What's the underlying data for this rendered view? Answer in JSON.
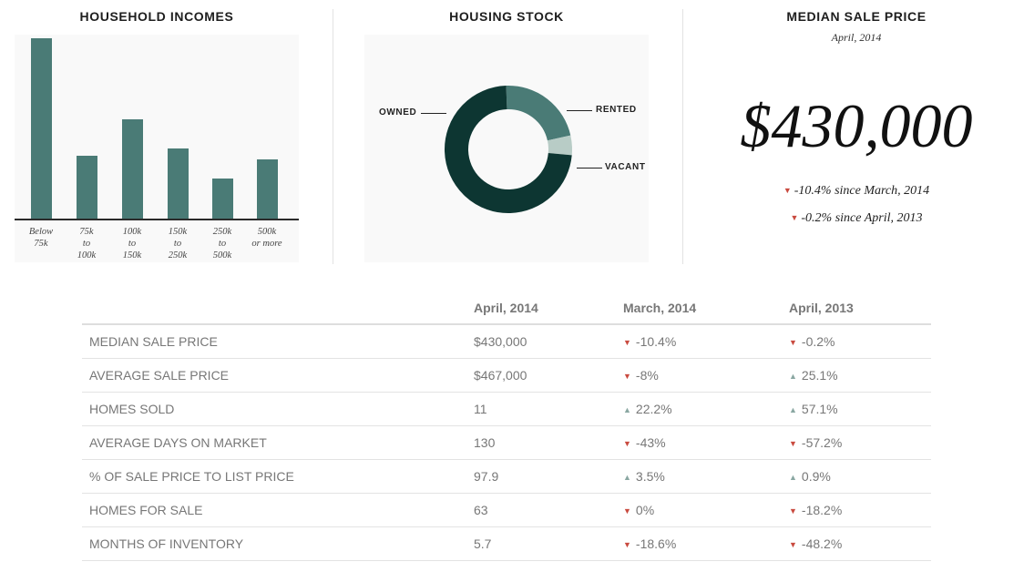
{
  "household_incomes": {
    "title": "HOUSEHOLD INCOMES",
    "chart_data": {
      "type": "bar",
      "categories": [
        "Below\n75k",
        "75k\nto\n100k",
        "100k\nto\n150k",
        "150k\nto\n250k",
        "250k\nto\n500k",
        "500k\nor more"
      ],
      "values": [
        100,
        35,
        55,
        39,
        22,
        33
      ],
      "bar_color": "#4a7b76"
    }
  },
  "housing_stock": {
    "title": "HOUSING STOCK",
    "chart_data": {
      "type": "pie",
      "labels": [
        "RENTED",
        "VACANT",
        "OWNED"
      ],
      "values": [
        22,
        5,
        73
      ],
      "colors": [
        "#4a7b76",
        "#b8ccc6",
        "#0d3632"
      ]
    }
  },
  "median_sale_price": {
    "title": "MEDIAN SALE PRICE",
    "period": "April, 2014",
    "value": "$430,000",
    "changes": [
      {
        "text": "-10.4% since March, 2014",
        "direction": "down"
      },
      {
        "text": "-0.2% since April, 2013",
        "direction": "down"
      }
    ]
  },
  "table": {
    "headers": [
      "",
      "April, 2014",
      "March, 2014",
      "April, 2013"
    ],
    "rows": [
      {
        "metric": "MEDIAN SALE PRICE",
        "current": "$430,000",
        "mom": "-10.4%",
        "mom_dir": "down",
        "yoy": "-0.2%",
        "yoy_dir": "down"
      },
      {
        "metric": "AVERAGE SALE PRICE",
        "current": "$467,000",
        "mom": "-8%",
        "mom_dir": "down",
        "yoy": "25.1%",
        "yoy_dir": "up"
      },
      {
        "metric": "HOMES SOLD",
        "current": "11",
        "mom": "22.2%",
        "mom_dir": "up",
        "yoy": "57.1%",
        "yoy_dir": "up"
      },
      {
        "metric": "AVERAGE DAYS ON MARKET",
        "current": "130",
        "mom": "-43%",
        "mom_dir": "down",
        "yoy": "-57.2%",
        "yoy_dir": "down"
      },
      {
        "metric": "% OF SALE PRICE TO LIST PRICE",
        "current": "97.9",
        "mom": "3.5%",
        "mom_dir": "up",
        "yoy": "0.9%",
        "yoy_dir": "up"
      },
      {
        "metric": "HOMES FOR SALE",
        "current": "63",
        "mom": "0%",
        "mom_dir": "down",
        "yoy": "-18.2%",
        "yoy_dir": "down"
      },
      {
        "metric": "MONTHS OF INVENTORY",
        "current": "5.7",
        "mom": "-18.6%",
        "mom_dir": "down",
        "yoy": "-48.2%",
        "yoy_dir": "down"
      }
    ]
  }
}
